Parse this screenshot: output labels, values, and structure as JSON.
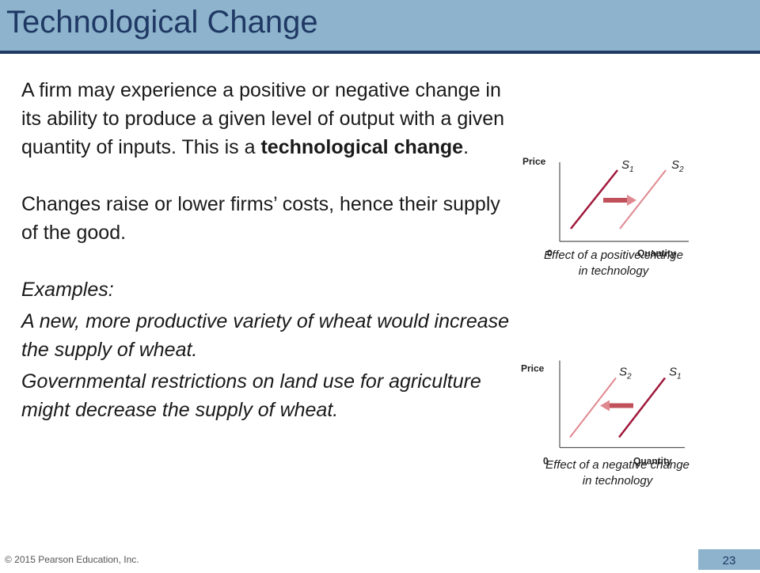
{
  "slide": {
    "title": "Technological Change",
    "paragraph1_text": "A firm may experience a positive or negative change in its ability to produce a given level of output with a given quantity of inputs. This is a ",
    "paragraph1_bold": "technological change",
    "paragraph1_end": ".",
    "paragraph2": "Changes raise or lower firms’ costs, hence their supply of the good.",
    "examples_label": "Examples:",
    "example1": "A new, more productive variety of wheat would increase the supply of wheat.",
    "example2": "Governmental restrictions on land use for agriculture might decrease the supply of wheat.",
    "footer": "© 2015 Pearson Education, Inc.",
    "page_number": "23"
  },
  "graph_positive": {
    "y_label": "Price",
    "x_label": "Quantity",
    "origin": "0",
    "left_curve": "S",
    "left_curve_sub": "1",
    "right_curve": "S",
    "right_curve_sub": "2",
    "caption_line1": "Effect of a positive change",
    "caption_line2": "in technology",
    "colors": {
      "left_line": "#a0183a",
      "right_line": "#e08890",
      "arrow": "#c0505a"
    }
  },
  "graph_negative": {
    "y_label": "Price",
    "x_label": "Quantity",
    "origin": "0",
    "left_curve": "S",
    "left_curve_sub": "2",
    "right_curve": "S",
    "right_curve_sub": "1",
    "caption_line1": "Effect of a negative change",
    "caption_line2": "in technology",
    "colors": {
      "left_line": "#e08890",
      "right_line": "#a0183a",
      "arrow": "#c0505a"
    }
  }
}
